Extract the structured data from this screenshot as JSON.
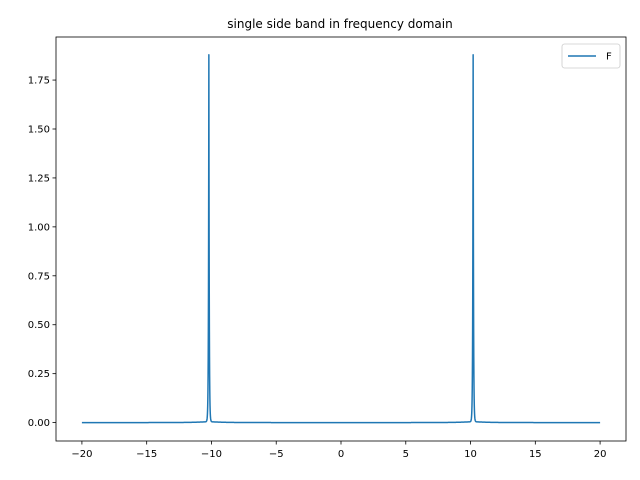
{
  "chart_data": {
    "type": "line",
    "title": "single side band in frequency domain",
    "xlabel": "",
    "ylabel": "",
    "xlim": [
      -22,
      22
    ],
    "ylim": [
      -0.094,
      1.97
    ],
    "xticks": [
      -20,
      -15,
      -10,
      -5,
      0,
      5,
      10,
      15,
      20
    ],
    "xtick_labels": [
      "−20",
      "−15",
      "−10",
      "−5",
      "0",
      "5",
      "10",
      "15",
      "20"
    ],
    "yticks": [
      0.0,
      0.25,
      0.5,
      0.75,
      1.0,
      1.25,
      1.5,
      1.75
    ],
    "ytick_labels": [
      "0.00",
      "0.25",
      "0.50",
      "0.75",
      "1.00",
      "1.25",
      "1.50",
      "1.75"
    ],
    "grid": false,
    "legend": {
      "position": "top-right",
      "entries": [
        "F"
      ]
    },
    "series": [
      {
        "name": "F",
        "color": "#1f77b4",
        "x_range": [
          -20,
          20
        ],
        "baseline": 0.0,
        "peaks": [
          {
            "x": -10.2,
            "y": 1.875
          },
          {
            "x": 10.2,
            "y": 1.875
          }
        ]
      }
    ]
  }
}
